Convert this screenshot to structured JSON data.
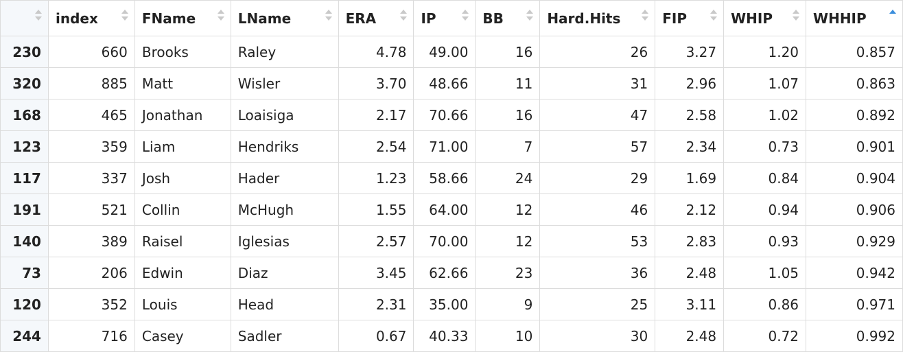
{
  "table": {
    "sort": {
      "column": "WHHIP",
      "direction": "ascending"
    },
    "accent_color": "#3a8ddc",
    "columns": [
      {
        "key": "rn",
        "label": ""
      },
      {
        "key": "index",
        "label": "index"
      },
      {
        "key": "fname",
        "label": "FName"
      },
      {
        "key": "lname",
        "label": "LName"
      },
      {
        "key": "era",
        "label": "ERA"
      },
      {
        "key": "ip",
        "label": "IP"
      },
      {
        "key": "bb",
        "label": "BB"
      },
      {
        "key": "hardhits",
        "label": "Hard.Hits"
      },
      {
        "key": "fip",
        "label": "FIP"
      },
      {
        "key": "whip",
        "label": "WHIP"
      },
      {
        "key": "whhip",
        "label": "WHHIP"
      }
    ],
    "rows": [
      [
        "230",
        "660",
        "Brooks",
        "Raley",
        "4.78",
        "49.00",
        "16",
        "26",
        "3.27",
        "1.20",
        "0.857"
      ],
      [
        "320",
        "885",
        "Matt",
        "Wisler",
        "3.70",
        "48.66",
        "11",
        "31",
        "2.96",
        "1.07",
        "0.863"
      ],
      [
        "168",
        "465",
        "Jonathan",
        "Loaisiga",
        "2.17",
        "70.66",
        "16",
        "47",
        "2.58",
        "1.02",
        "0.892"
      ],
      [
        "123",
        "359",
        "Liam",
        "Hendriks",
        "2.54",
        "71.00",
        "7",
        "57",
        "2.34",
        "0.73",
        "0.901"
      ],
      [
        "117",
        "337",
        "Josh",
        "Hader",
        "1.23",
        "58.66",
        "24",
        "29",
        "1.69",
        "0.84",
        "0.904"
      ],
      [
        "191",
        "521",
        "Collin",
        "McHugh",
        "1.55",
        "64.00",
        "12",
        "46",
        "2.12",
        "0.94",
        "0.906"
      ],
      [
        "140",
        "389",
        "Raisel",
        "Iglesias",
        "2.57",
        "70.00",
        "12",
        "53",
        "2.83",
        "0.93",
        "0.929"
      ],
      [
        "73",
        "206",
        "Edwin",
        "Diaz",
        "3.45",
        "62.66",
        "23",
        "36",
        "2.48",
        "1.05",
        "0.942"
      ],
      [
        "120",
        "352",
        "Louis",
        "Head",
        "2.31",
        "35.00",
        "9",
        "25",
        "3.11",
        "0.86",
        "0.971"
      ],
      [
        "244",
        "716",
        "Casey",
        "Sadler",
        "0.67",
        "40.33",
        "10",
        "30",
        "2.48",
        "0.72",
        "0.992"
      ]
    ]
  }
}
